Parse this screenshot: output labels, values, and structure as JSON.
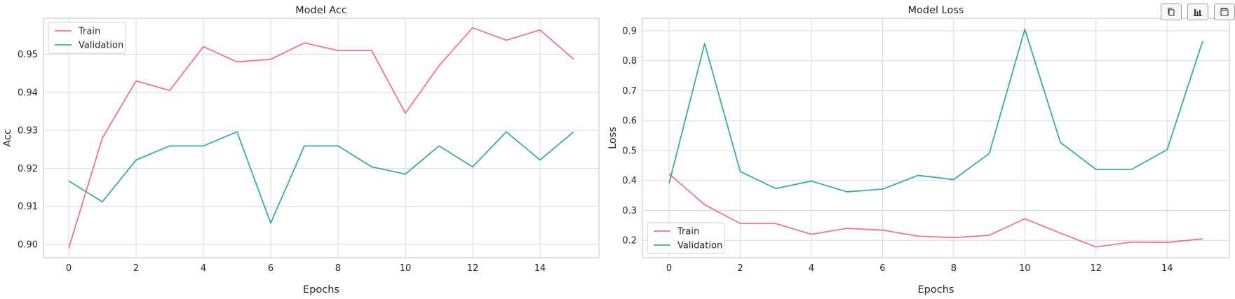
{
  "toolbar": {
    "buttons": [
      {
        "icon": "copy-icon"
      },
      {
        "icon": "bar-chart-icon"
      },
      {
        "icon": "save-icon"
      }
    ]
  },
  "colors": {
    "train": "#f77189",
    "validation": "#36ada4",
    "grid": "#d9d9d9",
    "axes_bg": "#ffffff",
    "text": "#262626"
  },
  "chart_data": [
    {
      "type": "line",
      "title": "Model Acc",
      "xlabel": "Epochs",
      "ylabel": "Acc",
      "xlim": [
        -0.75,
        15.75
      ],
      "ylim": [
        0.8965,
        0.9595
      ],
      "xticks": [
        0,
        2,
        4,
        6,
        8,
        10,
        12,
        14
      ],
      "yticks": [
        0.9,
        0.91,
        0.92,
        0.93,
        0.94,
        0.95
      ],
      "ytick_labels": [
        "0.90",
        "0.91",
        "0.92",
        "0.93",
        "0.94",
        "0.95"
      ],
      "grid": true,
      "legend": "upper-left",
      "x": [
        0,
        1,
        2,
        3,
        4,
        5,
        6,
        7,
        8,
        9,
        10,
        11,
        12,
        13,
        14,
        15
      ],
      "series": [
        {
          "name": "Train",
          "values": [
            0.899,
            0.928,
            0.943,
            0.9405,
            0.952,
            0.948,
            0.9487,
            0.953,
            0.951,
            0.951,
            0.9345,
            0.947,
            0.957,
            0.9537,
            0.9564,
            0.9487
          ]
        },
        {
          "name": "Validation",
          "values": [
            0.9167,
            0.9112,
            0.9222,
            0.9259,
            0.9259,
            0.9296,
            0.9056,
            0.9259,
            0.9259,
            0.9204,
            0.9185,
            0.9259,
            0.9204,
            0.9296,
            0.9222,
            0.9296
          ]
        }
      ]
    },
    {
      "type": "line",
      "title": "Model Loss",
      "xlabel": "Epochs",
      "ylabel": "Loss",
      "xlim": [
        -0.75,
        15.75
      ],
      "ylim": [
        0.142,
        0.942
      ],
      "xticks": [
        0,
        2,
        4,
        6,
        8,
        10,
        12,
        14
      ],
      "yticks": [
        0.2,
        0.3,
        0.4,
        0.5,
        0.6,
        0.7,
        0.8,
        0.9
      ],
      "ytick_labels": [
        "0.2",
        "0.3",
        "0.4",
        "0.5",
        "0.6",
        "0.7",
        "0.8",
        "0.9"
      ],
      "grid": true,
      "legend": "lower-left",
      "x": [
        0,
        1,
        2,
        3,
        4,
        5,
        6,
        7,
        8,
        9,
        10,
        11,
        12,
        13,
        14,
        15
      ],
      "series": [
        {
          "name": "Train",
          "values": [
            0.422,
            0.319,
            0.256,
            0.256,
            0.22,
            0.24,
            0.234,
            0.214,
            0.209,
            0.217,
            0.272,
            0.224,
            0.178,
            0.194,
            0.193,
            0.205
          ]
        },
        {
          "name": "Validation",
          "values": [
            0.39,
            0.857,
            0.43,
            0.373,
            0.398,
            0.362,
            0.371,
            0.417,
            0.403,
            0.49,
            0.905,
            0.527,
            0.437,
            0.437,
            0.503,
            0.866
          ]
        }
      ]
    }
  ]
}
